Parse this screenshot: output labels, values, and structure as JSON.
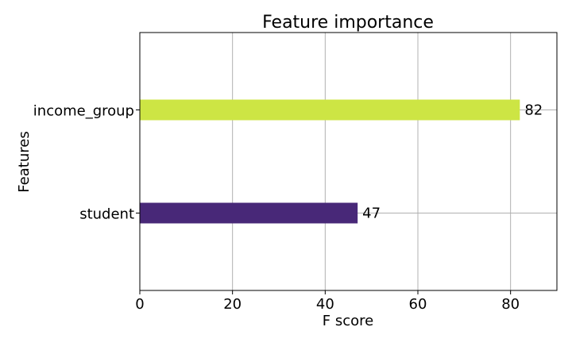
{
  "chart_data": {
    "type": "bar",
    "orientation": "horizontal",
    "title": "Feature importance",
    "xlabel": "F score",
    "ylabel": "Features",
    "categories": [
      "student",
      "income_group"
    ],
    "values": [
      47,
      82
    ],
    "value_labels": [
      "47",
      "82"
    ],
    "bar_colors": [
      "#482878",
      "#cde544"
    ],
    "xlim": [
      0,
      90
    ],
    "x_ticks": [
      0,
      20,
      40,
      60,
      80
    ],
    "x_tick_labels": [
      "0",
      "20",
      "40",
      "60",
      "80"
    ],
    "grid": true,
    "legend": "none"
  }
}
